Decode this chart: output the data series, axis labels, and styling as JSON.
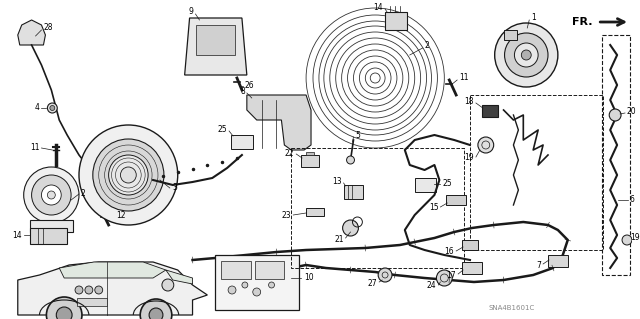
{
  "background_color": "#ffffff",
  "watermark": "SNA4B1601C",
  "fig_width": 6.4,
  "fig_height": 3.19,
  "dpi": 100,
  "label_fs": 5.5,
  "line_color": "#1a1a1a",
  "gray1": "#c8c8c8",
  "gray2": "#e0e0e0",
  "gray3": "#a0a0a0"
}
